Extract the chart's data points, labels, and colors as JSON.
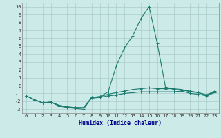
{
  "xlabel": "Humidex (Indice chaleur)",
  "x": [
    0,
    1,
    2,
    3,
    4,
    5,
    6,
    7,
    8,
    9,
    10,
    11,
    12,
    13,
    14,
    15,
    16,
    17,
    18,
    19,
    20,
    21,
    22,
    23
  ],
  "line1": [
    -1.3,
    -1.8,
    -2.2,
    -2.1,
    -2.5,
    -2.7,
    -2.8,
    -2.8,
    -1.6,
    -1.5,
    -1.3,
    -1.2,
    -1.0,
    -0.9,
    -0.8,
    -0.8,
    -0.8,
    -0.8,
    -0.8,
    -0.7,
    -1.0,
    -1.1,
    -1.3,
    -0.9
  ],
  "line2": [
    -1.3,
    -1.8,
    -2.2,
    -2.1,
    -2.5,
    -2.7,
    -2.8,
    -2.8,
    -1.5,
    -1.4,
    -1.1,
    -0.9,
    -0.7,
    -0.5,
    -0.4,
    -0.3,
    -0.4,
    -0.4,
    -0.4,
    -0.5,
    -0.8,
    -0.9,
    -1.2,
    -0.7
  ],
  "line3": [
    -1.3,
    -1.8,
    -2.2,
    -2.1,
    -2.6,
    -2.8,
    -2.9,
    -3.0,
    -1.5,
    -1.4,
    -0.8,
    2.5,
    4.8,
    6.3,
    8.5,
    10.0,
    5.3,
    -0.2,
    -0.5,
    -0.6,
    -0.7,
    -0.9,
    -1.2,
    -0.8
  ],
  "line_color": "#1a7a6e",
  "bg_color": "#cceae7",
  "grid_color": "#aacccc",
  "ylim": [
    -3.5,
    10.5
  ],
  "yticks": [
    -3,
    -2,
    -1,
    0,
    1,
    2,
    3,
    4,
    5,
    6,
    7,
    8,
    9,
    10
  ],
  "xlim": [
    -0.5,
    23.5
  ],
  "marker": "+",
  "markersize": 3,
  "linewidth": 0.8,
  "tick_fontsize": 5,
  "xlabel_fontsize": 6,
  "xlabel_color": "#00008b"
}
